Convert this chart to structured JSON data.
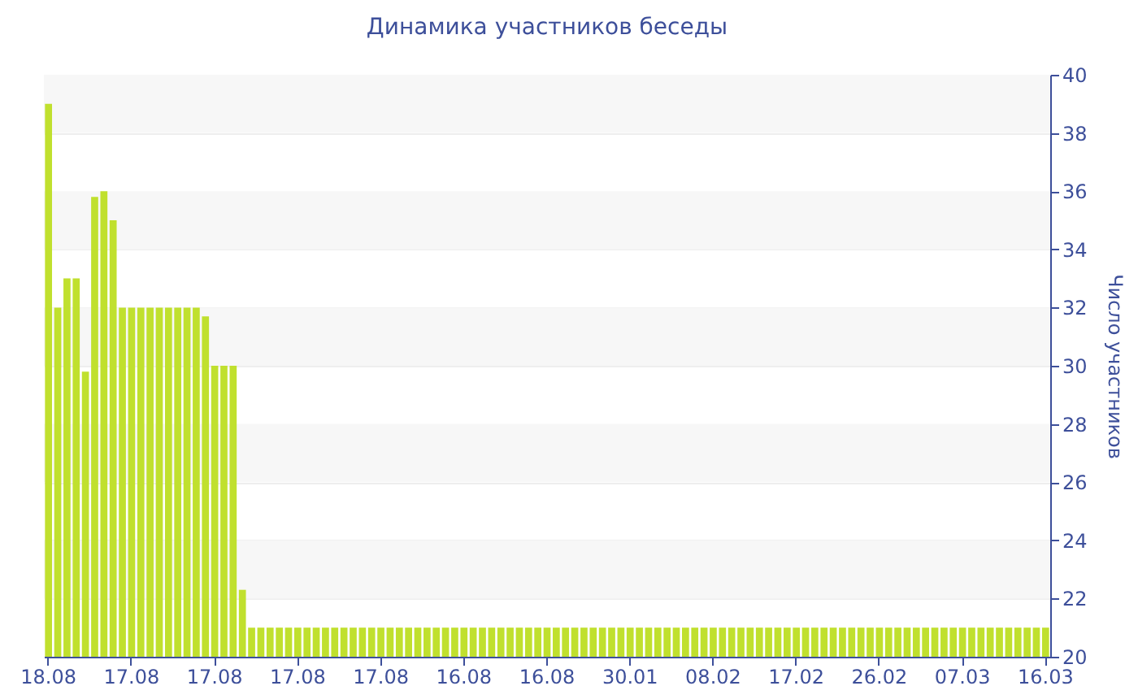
{
  "chart_data": {
    "type": "bar",
    "title": "Динамика участников беседы",
    "ylabel": "Число участников",
    "categories": [
      "18.08",
      null,
      null,
      null,
      null,
      null,
      null,
      null,
      null,
      "17.08",
      null,
      null,
      null,
      null,
      null,
      null,
      null,
      null,
      "17.08",
      null,
      null,
      null,
      null,
      null,
      null,
      null,
      null,
      "17.08",
      null,
      null,
      null,
      null,
      null,
      null,
      null,
      null,
      "17.08",
      null,
      null,
      null,
      null,
      null,
      null,
      null,
      null,
      "16.08",
      null,
      null,
      null,
      null,
      null,
      null,
      null,
      null,
      "16.08",
      null,
      null,
      null,
      null,
      null,
      null,
      null,
      null,
      "30.01",
      null,
      null,
      null,
      null,
      null,
      null,
      null,
      null,
      "08.02",
      null,
      null,
      null,
      null,
      null,
      null,
      null,
      null,
      "17.02",
      null,
      null,
      null,
      null,
      null,
      null,
      null,
      null,
      "26.02",
      null,
      null,
      null,
      null,
      null,
      null,
      null,
      null,
      "07.03",
      null,
      null,
      null,
      null,
      null,
      null,
      null,
      null,
      "16.03"
    ],
    "values": [
      39,
      32,
      33,
      33,
      29.8,
      35.8,
      36,
      35,
      32,
      32,
      32,
      32,
      32,
      32,
      32,
      32,
      32,
      31.7,
      30,
      30,
      30,
      22.3,
      21,
      21,
      21,
      21,
      21,
      21,
      21,
      21,
      21,
      21,
      21,
      21,
      21,
      21,
      21,
      21,
      21,
      21,
      21,
      21,
      21,
      21,
      21,
      21,
      21,
      21,
      21,
      21,
      21,
      21,
      21,
      21,
      21,
      21,
      21,
      21,
      21,
      21,
      21,
      21,
      21,
      21,
      21,
      21,
      21,
      21,
      21,
      21,
      21,
      21,
      21,
      21,
      21,
      21,
      21,
      21,
      21,
      21,
      21,
      21,
      21,
      21,
      21,
      21,
      21,
      21,
      21,
      21,
      21,
      21,
      21,
      21,
      21,
      21,
      21,
      21,
      21,
      21,
      21,
      21,
      21,
      21,
      21,
      21,
      21,
      21,
      21
    ],
    "color": "#c0e02e",
    "ylim": [
      20,
      40
    ],
    "yticks": [
      20,
      22,
      24,
      26,
      28,
      30,
      32,
      34,
      36,
      38,
      40
    ],
    "grid": true
  }
}
